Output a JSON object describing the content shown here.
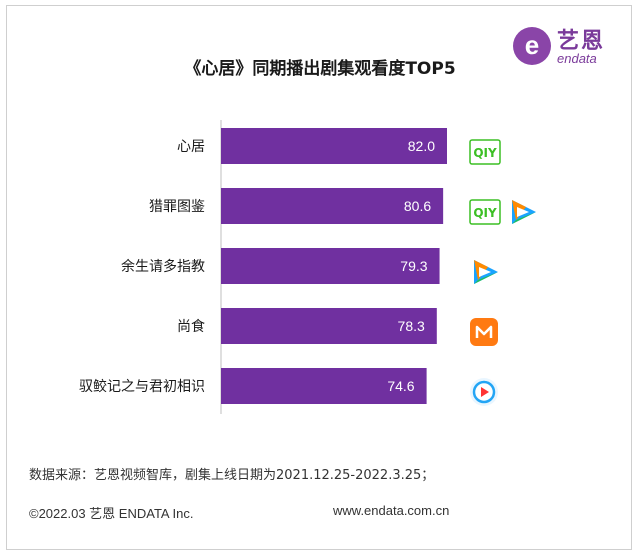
{
  "title": "《心居》同期播出剧集观看度TOP5",
  "logo": {
    "mark": "e",
    "cn": "艺恩",
    "en": "endata"
  },
  "chart_data": {
    "type": "bar",
    "orientation": "horizontal",
    "title": "《心居》同期播出剧集观看度TOP5",
    "categories": [
      "心居",
      "猎罪图鉴",
      "余生请多指教",
      "尚食",
      "驭鲛记之与君初相识"
    ],
    "values": [
      82.0,
      80.6,
      79.3,
      78.3,
      74.6
    ],
    "value_labels": [
      "82.0",
      "80.6",
      "79.3",
      "78.3",
      "74.6"
    ],
    "xlim": [
      0,
      100
    ],
    "bar_color": "#7030a0",
    "platforms": [
      [
        "iqiyi-icon"
      ],
      [
        "iqiyi-icon",
        "tencent-video-icon"
      ],
      [
        "tencent-video-icon"
      ],
      [
        "mango-tv-icon"
      ],
      [
        "youku-icon"
      ]
    ]
  },
  "iqiyi_text": "QIY",
  "source": "数据来源：艺恩视频智库，剧集上线日期为2021.12.25-2022.3.25；",
  "footer": {
    "copyright": "©2022.03 艺恩 ENDATA Inc.",
    "url": "www.endata.com.cn"
  }
}
